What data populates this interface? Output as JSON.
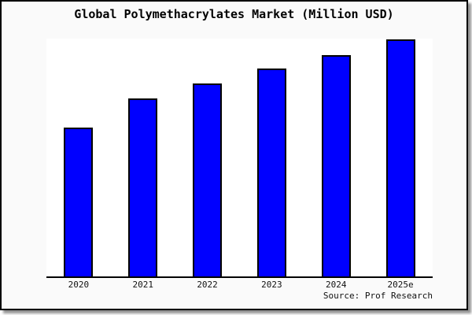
{
  "chart_data": {
    "type": "bar",
    "title": "Global Polymethacrylates Market (Million USD)",
    "categories": [
      "2020",
      "2021",
      "2022",
      "2023",
      "2024",
      "2025e"
    ],
    "values": [
      190,
      227,
      246,
      265,
      282,
      302
    ],
    "ylim": [
      0,
      303
    ],
    "xlabel": "",
    "ylabel": "",
    "grid": false,
    "legend": false,
    "y_axis_unlabeled": true,
    "value_units": "relative height units (chart shows no y-axis tick labels; values estimated from bar pixel heights, baseline 0)",
    "source_note": "Source: Prof Research",
    "colors": {
      "bar_fill": "#0000ff",
      "bar_border": "#000000",
      "frame_background": "#fafafa",
      "plot_background": "#ffffff",
      "axis_line": "#000000",
      "text": "#000000"
    }
  }
}
